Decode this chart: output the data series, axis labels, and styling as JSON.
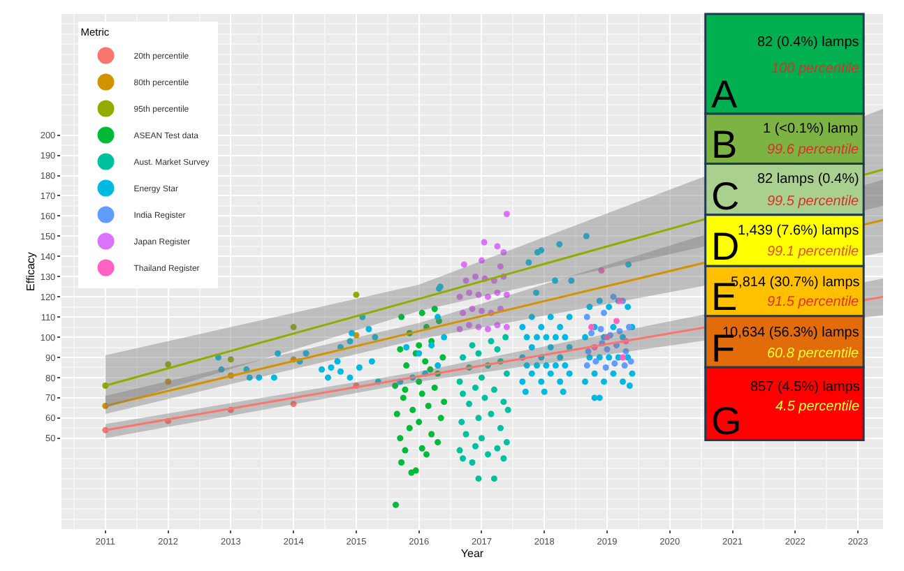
{
  "chart_data": [
    {
      "type": "scatter",
      "xlabel": "Year",
      "ylabel": "Efficacy",
      "legend_title": "Metric",
      "xlim": [
        2010.3,
        2023.4
      ],
      "ylim": [
        5,
        260
      ],
      "xticks": [
        2011,
        2012,
        2013,
        2014,
        2015,
        2016,
        2017,
        2018,
        2019,
        2020,
        2021,
        2022,
        2023
      ],
      "yticks": [
        50,
        60,
        70,
        80,
        90,
        100,
        110,
        120,
        130,
        140,
        150,
        160,
        170,
        180,
        190,
        200
      ],
      "grid": true,
      "legend": "top left",
      "marker": "circle",
      "series": [
        {
          "name": "20th percentile",
          "color": "#f8766d",
          "x": [
            2011,
            2012,
            2013,
            2014,
            2015
          ],
          "values": [
            54,
            58.5,
            64,
            67,
            76
          ]
        },
        {
          "name": "80th percentile",
          "color": "#d39200",
          "x": [
            2011,
            2012,
            2013,
            2014,
            2015
          ],
          "values": [
            66,
            78,
            81,
            89,
            101
          ]
        },
        {
          "name": "95th percentile",
          "color": "#93aa00",
          "x": [
            2011,
            2012,
            2013,
            2014,
            2015
          ],
          "values": [
            76,
            86.5,
            89,
            105,
            121
          ]
        },
        {
          "name": "ASEAN Test data",
          "color": "#00ba38",
          "x": [
            2015.63,
            2015.72,
            2015.78,
            2015.88,
            2015.95,
            2016.05,
            2016.12,
            2015.7,
            2015.85,
            2016.0,
            2016.2,
            2016.3,
            2015.65,
            2015.9,
            2016.15,
            2016.35,
            2015.75,
            2016.05,
            2016.25,
            2015.62,
            2016.0,
            2016.3,
            2015.8,
            2016.1,
            2016.38,
            2015.7,
            2016.0,
            2016.2,
            2015.85,
            2016.12,
            2016.32,
            2015.72,
            2016.05,
            2016.25,
            2015.95,
            2016.18,
            2015.78,
            2016.4
          ],
          "values": [
            17,
            38,
            44,
            33,
            34,
            45,
            42,
            50,
            55,
            58,
            52,
            48,
            62,
            64,
            66,
            60,
            70,
            72,
            75,
            76,
            78,
            82,
            86,
            88,
            90,
            94,
            96,
            98,
            102,
            105,
            108,
            110,
            112,
            114,
            92,
            84,
            74,
            68
          ]
        },
        {
          "name": "Aust. Market Survey",
          "color": "#00c19f",
          "x": [
            2016.95,
            2017.2,
            2016.7,
            2016.85,
            2017.1,
            2017.35,
            2016.65,
            2016.9,
            2017.25,
            2017.4,
            2016.75,
            2017.0,
            2017.3,
            2016.68,
            2016.95,
            2017.15,
            2017.42,
            2016.8,
            2017.05,
            2017.35,
            2016.7,
            2016.9,
            2017.2,
            2016.65,
            2017.0,
            2017.4,
            2016.8,
            2017.1,
            2017.3,
            2016.7,
            2016.95,
            2017.25,
            2016.85,
            2017.15,
            2017.38
          ],
          "values": [
            30,
            30,
            40,
            38,
            42,
            40,
            44,
            46,
            45,
            48,
            52,
            50,
            55,
            58,
            60,
            62,
            64,
            67,
            70,
            68,
            72,
            75,
            74,
            78,
            80,
            82,
            85,
            86,
            88,
            90,
            92,
            94,
            96,
            98,
            100
          ]
        },
        {
          "name": "Energy Star",
          "color": "#00b9e3",
          "x": [
            2012.8,
            2012.85,
            2013.25,
            2013.3,
            2013.45,
            2013.69,
            2013.75,
            2014.1,
            2014.2,
            2014.45,
            2014.55,
            2014.6,
            2014.7,
            2014.75,
            2014.75,
            2014.9,
            2014.9,
            2014.93,
            2015.05,
            2015.1,
            2015.2,
            2015.25,
            2015.3,
            2015.35,
            2015.7,
            2015.9,
            2016.1,
            2016.3,
            2016.0,
            2016.2,
            2016.4,
            2015.8,
            2016.3,
            2016.32,
            2016.34,
            2017.75,
            2017.89,
            2017.95,
            2018.24,
            2018.17,
            2018.43,
            2017.87,
            2017.7,
            2018.0,
            2018.3,
            2017.65,
            2017.8,
            2017.95,
            2018.1,
            2018.25,
            2018.4,
            2017.65,
            2017.8,
            2017.95,
            2018.1,
            2018.25,
            2018.4,
            2017.65,
            2017.8,
            2017.95,
            2018.1,
            2018.25,
            2018.4,
            2017.72,
            2017.88,
            2018.03,
            2018.18,
            2018.33,
            2017.72,
            2017.88,
            2018.03,
            2018.18,
            2018.33,
            2018.67,
            2018.8,
            2018.88,
            2019.36,
            2019.34,
            2018.65,
            2018.8,
            2018.95,
            2019.1,
            2019.25,
            2019.4,
            2018.65,
            2018.8,
            2018.95,
            2019.1,
            2019.25,
            2019.4,
            2018.72,
            2018.88,
            2019.03,
            2019.18,
            2019.33,
            2018.72,
            2018.88,
            2019.03,
            2019.18,
            2019.33
          ],
          "values": [
            90,
            84,
            84,
            80,
            80,
            80,
            92,
            88,
            92,
            84,
            80,
            85,
            88,
            95,
            83,
            98,
            80,
            102,
            85,
            110,
            104,
            88,
            100,
            78,
            78,
            80,
            82,
            86,
            92,
            96,
            100,
            95,
            110,
            124,
            125,
            137,
            142,
            143,
            146,
            128,
            128,
            122,
            73,
            73,
            73,
            78,
            82,
            78,
            82,
            78,
            82,
            90,
            95,
            90,
            95,
            90,
            95,
            105,
            110,
            105,
            110,
            105,
            110,
            86,
            86,
            86,
            86,
            86,
            100,
            100,
            100,
            100,
            100,
            150,
            70,
            70,
            76,
            136,
            78,
            82,
            78,
            82,
            78,
            82,
            100,
            105,
            100,
            105,
            100,
            105,
            115,
            118,
            115,
            118,
            115,
            90,
            90,
            90,
            90,
            90
          ]
        },
        {
          "name": "India Register",
          "color": "#619cff",
          "x": [
            2018.68,
            2018.82,
            2018.98,
            2019.12,
            2019.28,
            2019.38,
            2018.7,
            2018.92,
            2019.0,
            2019.15,
            2019.3,
            2018.75,
            2018.9,
            2019.05,
            2019.2,
            2019.35,
            2018.68,
            2018.95,
            2019.25,
            2019.1
          ],
          "values": [
            86,
            88,
            85,
            87,
            86,
            88,
            93,
            97,
            94,
            96,
            93,
            102,
            104,
            101,
            103,
            105,
            110,
            112,
            118,
            120
          ]
        },
        {
          "name": "Japan Register",
          "color": "#db72fb",
          "x": [
            2016.65,
            2016.8,
            2016.95,
            2017.1,
            2017.25,
            2017.4,
            2016.7,
            2016.85,
            2017.0,
            2017.15,
            2017.3,
            2016.65,
            2016.8,
            2016.95,
            2017.1,
            2017.25,
            2017.4,
            2016.75,
            2016.9,
            2017.05,
            2017.2,
            2017.35,
            2016.72,
            2017.0,
            2017.3,
            2017.04,
            2017.25,
            2017.35,
            2017.4
          ],
          "values": [
            104,
            106,
            105,
            104,
            106,
            105,
            112,
            114,
            113,
            112,
            114,
            120,
            122,
            121,
            120,
            122,
            121,
            128,
            130,
            129,
            128,
            130,
            136,
            138,
            135,
            147,
            145,
            142,
            161
          ]
        },
        {
          "name": "Thailand Register",
          "color": "#ff61c3",
          "x": [
            2018.91,
            2019.2,
            2018.75,
            2019.0,
            2019.15,
            2018.8,
            2019.3,
            2019.25
          ],
          "values": [
            133,
            118,
            105,
            100,
            108,
            95,
            98,
            90
          ]
        },
        {
          "type": "line",
          "marker": "none",
          "color": "#f8766d",
          "x": [
            2011,
            2016,
            2023.4
          ],
          "values": [
            54,
            80.6,
            120
          ],
          "lower": [
            50,
            78,
            111
          ],
          "upper": [
            57,
            83,
            129
          ]
        },
        {
          "type": "line",
          "marker": "none",
          "color": "#d39200",
          "x": [
            2011,
            2016,
            2023.4
          ],
          "values": [
            66,
            103,
            158
          ],
          "lower": [
            62,
            99,
            142
          ],
          "upper": [
            71,
            107,
            178
          ]
        },
        {
          "type": "line",
          "marker": "none",
          "color": "#93aa00",
          "x": [
            2011,
            2016,
            2023.4
          ],
          "values": [
            76,
            119,
            183
          ],
          "lower": [
            65,
            113,
            165
          ],
          "upper": [
            91,
            126,
            213
          ]
        }
      ]
    },
    {
      "type": "other",
      "annotations": [
        "A",
        "82 (0.4%) lamps",
        "100 percentile",
        "B",
        "1 (<0.1%) lamp",
        "99.6 percentile",
        "C",
        "82 lamps (0.4%)",
        "99.5 percentile",
        "D",
        "1,439 (7.6%) lamps",
        "99.1 percentile",
        "E",
        "5,814 (30.7%) lamps",
        "91.5 percentile",
        "F",
        "10,634 (56.3%) lamps",
        "60.8 percentile",
        "G",
        "857 (4.5%) lamps",
        "4.5 percentile"
      ]
    }
  ]
}
